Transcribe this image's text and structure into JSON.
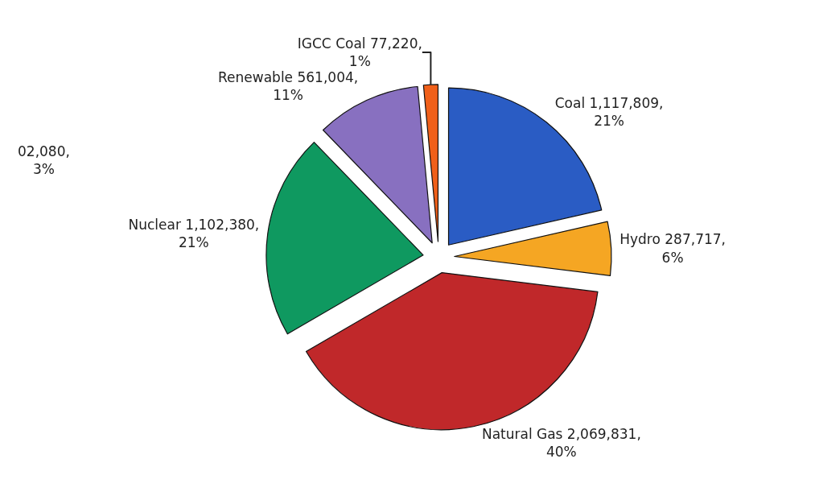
{
  "chart_data": {
    "type": "pie",
    "categories": [
      "Coal",
      "Hydro",
      "Natural Gas",
      "Nuclear",
      "Renewable",
      "IGCC Coal"
    ],
    "values": [
      1117809,
      287717,
      2069831,
      1102380,
      561004,
      77220
    ],
    "colors": [
      "#2a5cc4",
      "#f5a623",
      "#c0282a",
      "#0f9960",
      "#8870c0",
      "#f0601a"
    ],
    "value_labels": [
      "1,117,809,\n21%",
      "287,717,\n6%",
      "2,069,831,\n40%",
      "1,102,380,\n21%",
      "561,004,\n11%",
      "77,220,\n1%"
    ],
    "annotations": [
      "02,080,\n3%"
    ],
    "legend": false
  }
}
